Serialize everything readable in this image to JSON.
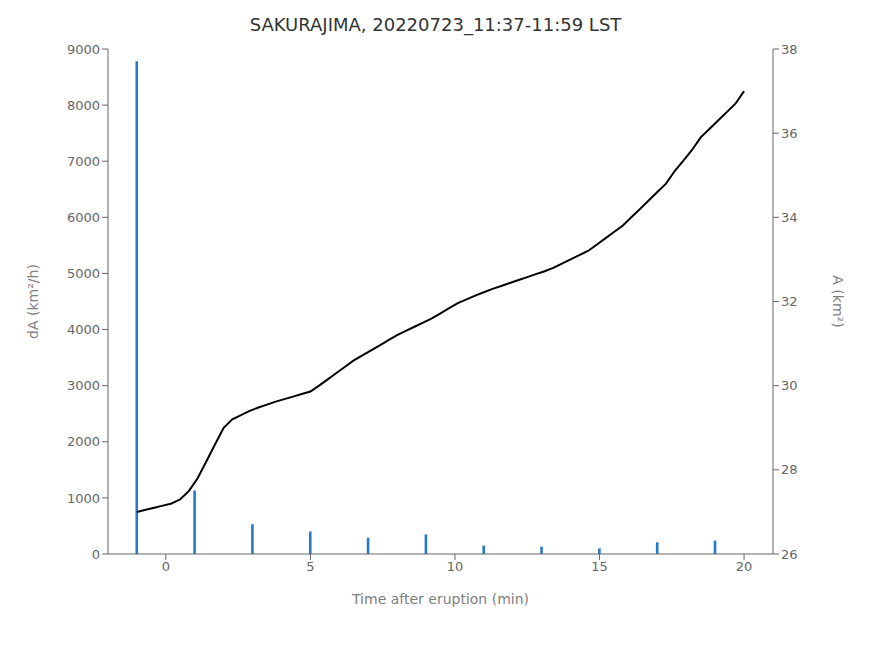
{
  "chart_data": {
    "type": "bar",
    "title": "SAKURAJIMA, 20220723_11:37-11:59 LST",
    "xlabel": "Time after eruption (min)",
    "ylabel": "dA (km²/h)",
    "y2label": "A (km²)",
    "xlim": [
      -2,
      21
    ],
    "xticks": [
      0,
      5,
      10,
      15,
      20
    ],
    "ylim": [
      0,
      9000
    ],
    "yticks": [
      0,
      1000,
      2000,
      3000,
      4000,
      5000,
      6000,
      7000,
      8000,
      9000
    ],
    "y2lim": [
      26,
      38
    ],
    "y2ticks": [
      26,
      28,
      30,
      32,
      34,
      36,
      38
    ],
    "grid": false,
    "series": [
      {
        "type": "bar",
        "color": "#2878c8",
        "x": [
          -1,
          1,
          3,
          5,
          7,
          9,
          11,
          13,
          15,
          17,
          19
        ],
        "values": [
          8780,
          1130,
          530,
          400,
          290,
          350,
          150,
          130,
          100,
          210,
          240
        ]
      },
      {
        "type": "line",
        "axis": "y2",
        "color": "#000000",
        "x": [
          -1.0,
          -0.7,
          -0.4,
          -0.1,
          0.2,
          0.5,
          0.8,
          1.1,
          1.4,
          1.7,
          2.0,
          2.3,
          2.6,
          2.9,
          3.2,
          3.5,
          3.8,
          4.1,
          4.4,
          4.7,
          5.0,
          5.3,
          5.6,
          5.9,
          6.2,
          6.5,
          6.8,
          7.1,
          7.4,
          7.7,
          8.0,
          8.3,
          8.6,
          8.9,
          9.2,
          9.5,
          9.8,
          10.1,
          10.4,
          10.7,
          11.0,
          11.3,
          11.6,
          11.9,
          12.2,
          12.5,
          12.8,
          13.1,
          13.4,
          13.7,
          14.0,
          14.3,
          14.6,
          14.9,
          15.2,
          15.5,
          15.8,
          16.1,
          16.4,
          16.7,
          17.0,
          17.3,
          17.6,
          17.9,
          18.2,
          18.5,
          18.8,
          19.1,
          19.4,
          19.7,
          20.0
        ],
        "values": [
          27.0,
          27.05,
          27.1,
          27.15,
          27.2,
          27.3,
          27.5,
          27.8,
          28.2,
          28.6,
          29.0,
          29.2,
          29.3,
          29.4,
          29.48,
          29.55,
          29.62,
          29.68,
          29.74,
          29.8,
          29.86,
          30.0,
          30.15,
          30.3,
          30.45,
          30.6,
          30.72,
          30.84,
          30.96,
          31.08,
          31.2,
          31.3,
          31.4,
          31.5,
          31.6,
          31.72,
          31.84,
          31.96,
          32.05,
          32.14,
          32.22,
          32.3,
          32.37,
          32.44,
          32.51,
          32.58,
          32.65,
          32.72,
          32.8,
          32.9,
          33.0,
          33.1,
          33.2,
          33.35,
          33.5,
          33.65,
          33.8,
          34.0,
          34.2,
          34.4,
          34.6,
          34.8,
          35.1,
          35.35,
          35.6,
          35.9,
          36.1,
          36.3,
          36.5,
          36.7,
          37.0
        ]
      }
    ]
  }
}
